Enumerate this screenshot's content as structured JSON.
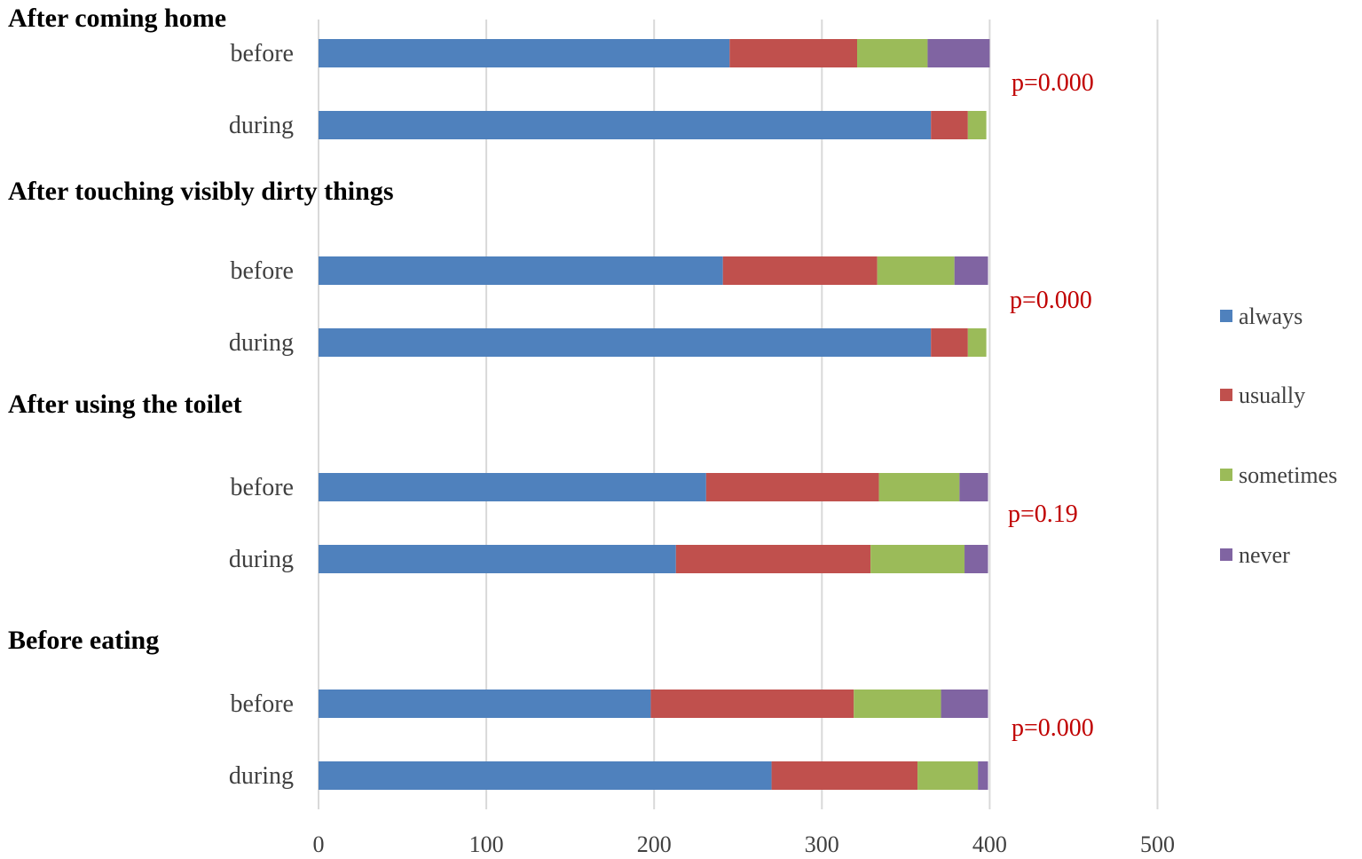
{
  "chart_data": {
    "type": "bar",
    "orientation": "horizontal",
    "stacked": true,
    "xlim": [
      0,
      500
    ],
    "xticks": [
      0,
      100,
      200,
      300,
      400,
      500
    ],
    "grid": true,
    "legend_position": "right",
    "legend": [
      "always",
      "usually",
      "sometimes",
      "never"
    ],
    "colors": {
      "always": "#4f81bd",
      "usually": "#c0504d",
      "sometimes": "#9bbb59",
      "never": "#8064a2"
    },
    "groups": [
      {
        "title": "After coming home",
        "p_value": "p=0.000",
        "bars": [
          {
            "label": "before",
            "always": 245,
            "usually": 76,
            "sometimes": 42,
            "never": 37
          },
          {
            "label": "during",
            "always": 365,
            "usually": 22,
            "sometimes": 11,
            "never": 0
          }
        ]
      },
      {
        "title": "After touching visibly dirty things",
        "p_value": "p=0.000",
        "bars": [
          {
            "label": "before",
            "always": 241,
            "usually": 92,
            "sometimes": 46,
            "never": 20
          },
          {
            "label": "during",
            "always": 365,
            "usually": 22,
            "sometimes": 11,
            "never": 0
          }
        ]
      },
      {
        "title": "After using the toilet",
        "p_value": "p=0.19",
        "bars": [
          {
            "label": "before",
            "always": 231,
            "usually": 103,
            "sometimes": 48,
            "never": 17
          },
          {
            "label": "during",
            "always": 213,
            "usually": 116,
            "sometimes": 56,
            "never": 14
          }
        ]
      },
      {
        "title": "Before eating",
        "p_value": "p=0.000",
        "bars": [
          {
            "label": "before",
            "always": 198,
            "usually": 121,
            "sometimes": 52,
            "never": 28
          },
          {
            "label": "during",
            "always": 270,
            "usually": 87,
            "sometimes": 36,
            "never": 6
          }
        ]
      }
    ]
  }
}
